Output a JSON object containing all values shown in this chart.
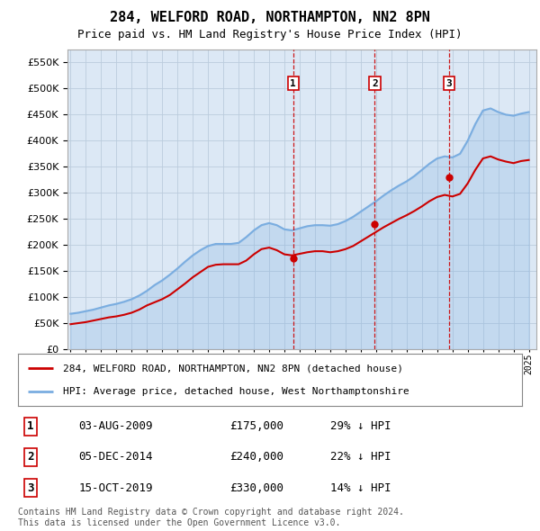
{
  "title": "284, WELFORD ROAD, NORTHAMPTON, NN2 8PN",
  "subtitle": "Price paid vs. HM Land Registry's House Price Index (HPI)",
  "footer": "Contains HM Land Registry data © Crown copyright and database right 2024.\nThis data is licensed under the Open Government Licence v3.0.",
  "legend_line1": "284, WELFORD ROAD, NORTHAMPTON, NN2 8PN (detached house)",
  "legend_line2": "HPI: Average price, detached house, West Northamptonshire",
  "transactions": [
    {
      "num": 1,
      "date": "03-AUG-2009",
      "price": "£175,000",
      "pct": "29% ↓ HPI"
    },
    {
      "num": 2,
      "date": "05-DEC-2014",
      "price": "£240,000",
      "pct": "22% ↓ HPI"
    },
    {
      "num": 3,
      "date": "15-OCT-2019",
      "price": "£330,000",
      "pct": "14% ↓ HPI"
    }
  ],
  "transaction_years": [
    2009.58,
    2014.92,
    2019.79
  ],
  "transaction_prices": [
    175000,
    240000,
    330000
  ],
  "ylim": [
    0,
    575000
  ],
  "yticks": [
    0,
    50000,
    100000,
    150000,
    200000,
    250000,
    300000,
    350000,
    400000,
    450000,
    500000,
    550000
  ],
  "red_color": "#cc0000",
  "blue_color": "#7aade0",
  "vline_color": "#cc0000",
  "bg_color": "#dce8f5",
  "plot_bg": "#ffffff",
  "grid_color": "#bbccdd",
  "hpi_years": [
    1995,
    1995.5,
    1996,
    1996.5,
    1997,
    1997.5,
    1998,
    1998.5,
    1999,
    1999.5,
    2000,
    2000.5,
    2001,
    2001.5,
    2002,
    2002.5,
    2003,
    2003.5,
    2004,
    2004.5,
    2005,
    2005.5,
    2006,
    2006.5,
    2007,
    2007.5,
    2008,
    2008.5,
    2009,
    2009.5,
    2010,
    2010.5,
    2011,
    2011.5,
    2012,
    2012.5,
    2013,
    2013.5,
    2014,
    2014.5,
    2015,
    2015.5,
    2016,
    2016.5,
    2017,
    2017.5,
    2018,
    2018.5,
    2019,
    2019.5,
    2020,
    2020.5,
    2021,
    2021.5,
    2022,
    2022.5,
    2023,
    2023.5,
    2024,
    2024.5,
    2025
  ],
  "hpi_values": [
    68000,
    70000,
    73000,
    76000,
    80000,
    84000,
    87000,
    91000,
    96000,
    103000,
    112000,
    123000,
    132000,
    143000,
    155000,
    168000,
    180000,
    190000,
    198000,
    202000,
    202000,
    202000,
    204000,
    215000,
    228000,
    238000,
    242000,
    238000,
    230000,
    228000,
    232000,
    236000,
    238000,
    238000,
    237000,
    240000,
    246000,
    254000,
    264000,
    274000,
    284000,
    295000,
    305000,
    314000,
    322000,
    332000,
    344000,
    356000,
    366000,
    370000,
    368000,
    375000,
    400000,
    432000,
    458000,
    462000,
    455000,
    450000,
    448000,
    452000,
    455000
  ],
  "price_years": [
    1995,
    1995.5,
    1996,
    1996.5,
    1997,
    1997.5,
    1998,
    1998.5,
    1999,
    1999.5,
    2000,
    2000.5,
    2001,
    2001.5,
    2002,
    2002.5,
    2003,
    2003.5,
    2004,
    2004.5,
    2005,
    2005.5,
    2006,
    2006.5,
    2007,
    2007.5,
    2008,
    2008.5,
    2009,
    2009.5,
    2010,
    2010.5,
    2011,
    2011.5,
    2012,
    2012.5,
    2013,
    2013.5,
    2014,
    2014.5,
    2015,
    2015.5,
    2016,
    2016.5,
    2017,
    2017.5,
    2018,
    2018.5,
    2019,
    2019.5,
    2020,
    2020.5,
    2021,
    2021.5,
    2022,
    2022.5,
    2023,
    2023.5,
    2024,
    2024.5,
    2025
  ],
  "price_values": [
    48000,
    50000,
    52000,
    55000,
    58000,
    61000,
    63000,
    66000,
    70000,
    76000,
    84000,
    90000,
    96000,
    104000,
    115000,
    126000,
    138000,
    148000,
    158000,
    162000,
    163000,
    163000,
    163000,
    170000,
    182000,
    192000,
    195000,
    190000,
    182000,
    180000,
    183000,
    186000,
    188000,
    188000,
    186000,
    188000,
    192000,
    198000,
    207000,
    216000,
    225000,
    234000,
    242000,
    250000,
    257000,
    265000,
    274000,
    284000,
    292000,
    296000,
    293000,
    298000,
    318000,
    344000,
    366000,
    370000,
    364000,
    360000,
    357000,
    361000,
    363000
  ]
}
